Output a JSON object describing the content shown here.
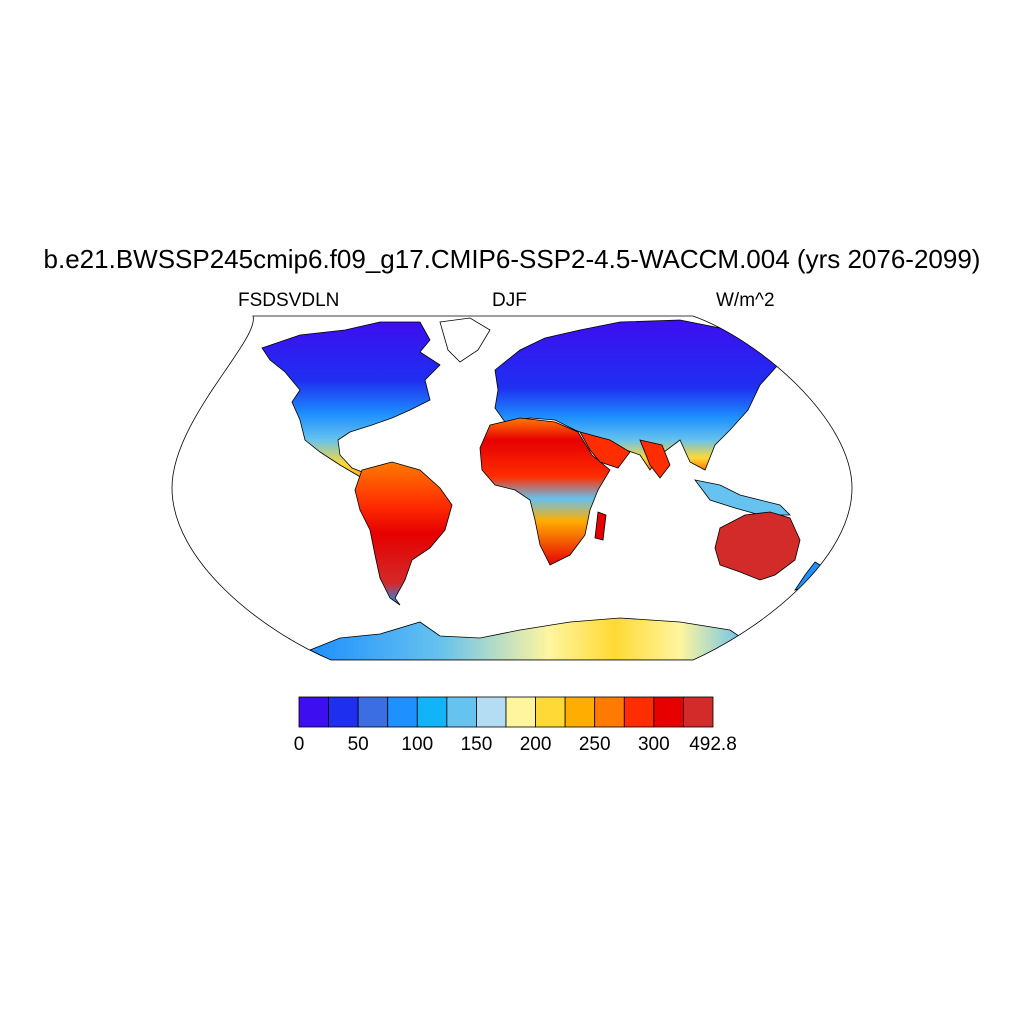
{
  "header": {
    "title": "b.e21.BWSSP245cmip6.f09_g17.CMIP6-SSP2-4.5-WACCM.004 (yrs 2076-2099)",
    "left_label": "FSDSVDLN",
    "center_label": "DJF",
    "right_label": "W/m^2"
  },
  "colorbar": {
    "colors": [
      "#3c0ef0",
      "#1f2ff0",
      "#3b6ee3",
      "#1e90ff",
      "#11b4f7",
      "#66c2ee",
      "#b4ddf3",
      "#fff59e",
      "#ffd935",
      "#ffad00",
      "#ff7a00",
      "#ff2d00",
      "#e60000",
      "#d32a2a"
    ],
    "labels": [
      "0",
      "50",
      "100",
      "150",
      "200",
      "250",
      "300",
      "492.8"
    ]
  },
  "map": {
    "projection": "Robinson",
    "colormap_note": "",
    "land_regions": [
      {
        "name": "north-america-north",
        "color": "#3c0ef0"
      },
      {
        "name": "north-america-mid",
        "color": "#1e90ff"
      },
      {
        "name": "mexico-central-america",
        "color": "#ff7a00"
      },
      {
        "name": "south-america",
        "color": "#d32a2a"
      },
      {
        "name": "greenland",
        "color": "#ffffff"
      },
      {
        "name": "eurasia-north",
        "color": "#3c0ef0"
      },
      {
        "name": "eurasia-mid",
        "color": "#66c2ee"
      },
      {
        "name": "africa-north",
        "color": "#e60000"
      },
      {
        "name": "africa-south",
        "color": "#ff7a00"
      },
      {
        "name": "arabia-india",
        "color": "#ff2d00"
      },
      {
        "name": "southeast-asia",
        "color": "#66c2ee"
      },
      {
        "name": "australia",
        "color": "#d32a2a"
      },
      {
        "name": "antarctica",
        "color": "#66c2ee"
      }
    ]
  }
}
